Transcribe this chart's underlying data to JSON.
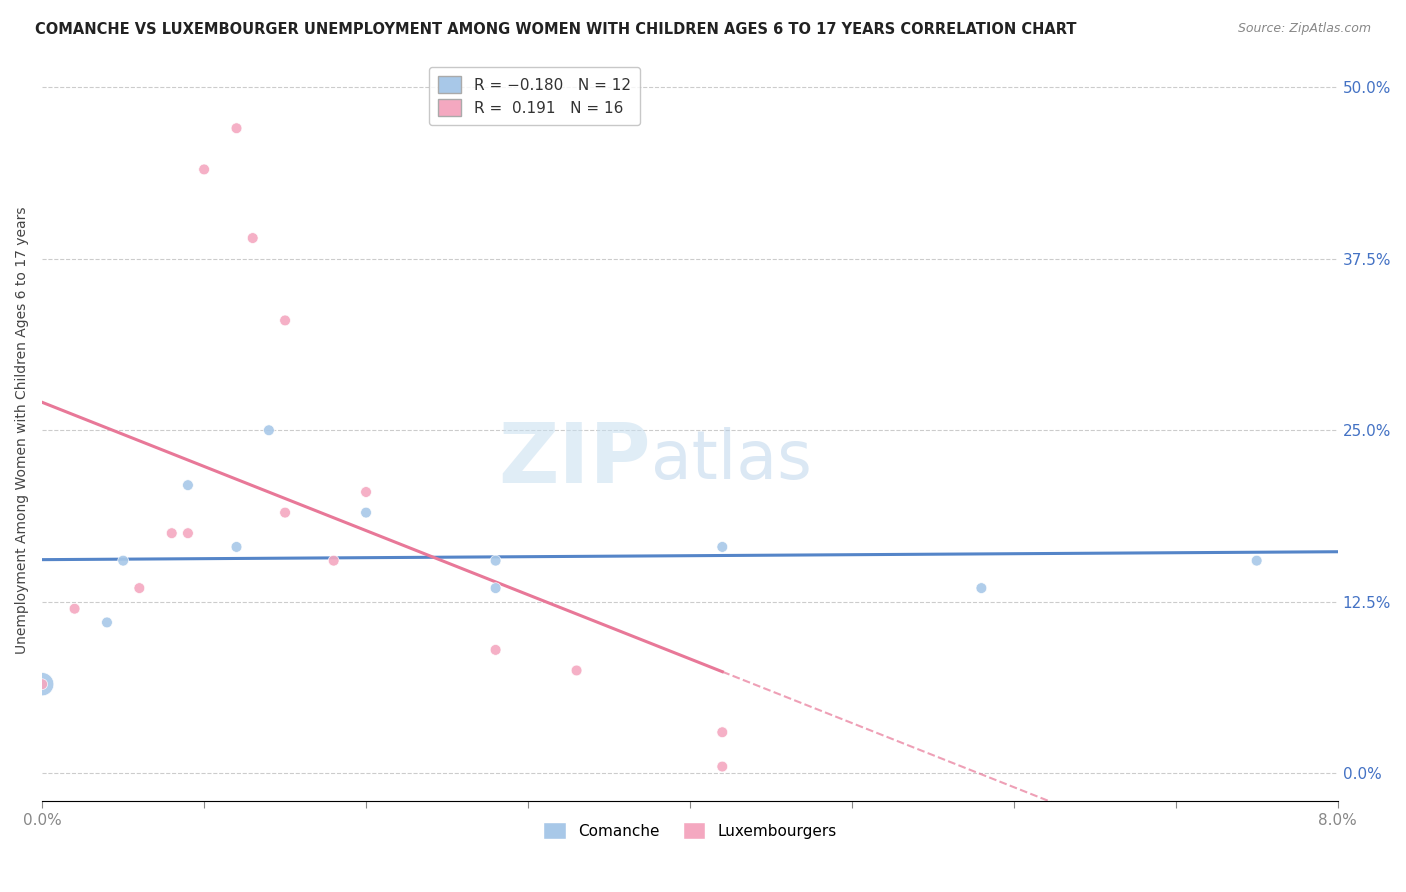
{
  "title": "COMANCHE VS LUXEMBOURGER UNEMPLOYMENT AMONG WOMEN WITH CHILDREN AGES 6 TO 17 YEARS CORRELATION CHART",
  "source": "Source: ZipAtlas.com",
  "ylabel": "Unemployment Among Women with Children Ages 6 to 17 years",
  "xlim": [
    0.0,
    0.08
  ],
  "ylim": [
    -0.02,
    0.52
  ],
  "xticks": [
    0.0,
    0.01,
    0.02,
    0.03,
    0.04,
    0.05,
    0.06,
    0.07,
    0.08
  ],
  "xtick_labels": [
    "0.0%",
    "",
    "",
    "",
    "",
    "",
    "",
    "",
    "8.0%"
  ],
  "ytick_labels": [
    "0.0%",
    "12.5%",
    "25.0%",
    "37.5%",
    "50.0%"
  ],
  "yticks": [
    0.0,
    0.125,
    0.25,
    0.375,
    0.5
  ],
  "r_comanche": -0.18,
  "n_comanche": 12,
  "r_luxembourger": 0.191,
  "n_luxembourger": 16,
  "comanche_color": "#a8c8e8",
  "luxembourger_color": "#f4a8c0",
  "comanche_line_color": "#5585c8",
  "luxembourger_line_color": "#e87898",
  "watermark_zip": "ZIP",
  "watermark_atlas": "atlas",
  "comanche_x": [
    0.0,
    0.004,
    0.005,
    0.009,
    0.012,
    0.014,
    0.02,
    0.028,
    0.028,
    0.042,
    0.058,
    0.075
  ],
  "comanche_y": [
    0.065,
    0.11,
    0.155,
    0.21,
    0.165,
    0.25,
    0.19,
    0.155,
    0.135,
    0.165,
    0.135,
    0.155
  ],
  "comanche_sizes": [
    280,
    60,
    60,
    60,
    60,
    60,
    60,
    60,
    60,
    60,
    60,
    60
  ],
  "luxembourger_x": [
    0.0,
    0.002,
    0.006,
    0.008,
    0.009,
    0.01,
    0.012,
    0.013,
    0.015,
    0.015,
    0.018,
    0.02,
    0.028,
    0.033,
    0.042,
    0.042
  ],
  "luxembourger_y": [
    0.065,
    0.12,
    0.135,
    0.175,
    0.175,
    0.44,
    0.47,
    0.39,
    0.33,
    0.19,
    0.155,
    0.205,
    0.09,
    0.075,
    0.005,
    0.03
  ],
  "luxembourger_sizes": [
    60,
    60,
    60,
    60,
    60,
    60,
    60,
    60,
    60,
    60,
    60,
    60,
    60,
    60,
    60,
    60
  ]
}
